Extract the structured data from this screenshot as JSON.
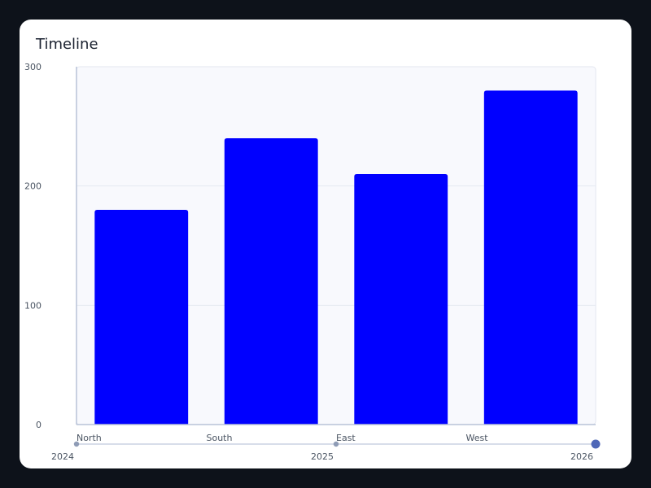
{
  "chart_data": {
    "type": "bar",
    "title": "Timeline",
    "categories": [
      "North",
      "South",
      "East",
      "West"
    ],
    "values": [
      180,
      240,
      210,
      280
    ],
    "ylim": [
      0,
      300
    ],
    "yticks": [
      0,
      100,
      200,
      300
    ],
    "grid": true,
    "bar_color": "#0000ff",
    "timeline": {
      "labels": [
        "2024",
        "2025",
        "2026"
      ],
      "selected": "2026"
    }
  }
}
